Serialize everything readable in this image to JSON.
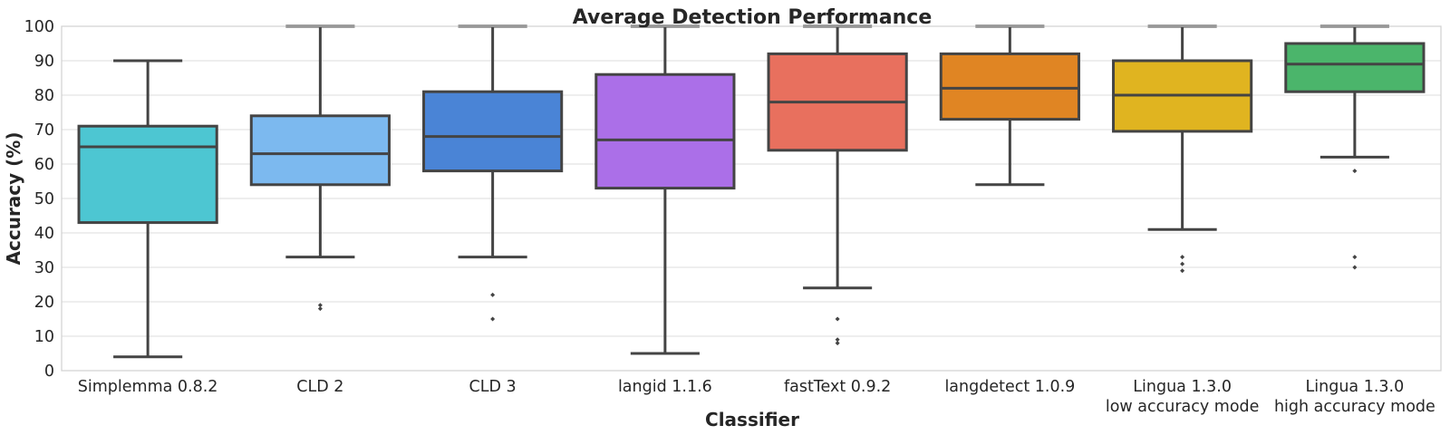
{
  "chart_data": {
    "type": "box",
    "title": "Average Detection Performance",
    "xlabel": "Classifier",
    "ylabel": "Accuracy (%)",
    "ylim": [
      0,
      100
    ],
    "yticks": [
      0,
      10,
      20,
      30,
      40,
      50,
      60,
      70,
      80,
      90,
      100
    ],
    "grid": true,
    "categories": [
      [
        "Simplemma 0.8.2"
      ],
      [
        "CLD 2"
      ],
      [
        "CLD 3"
      ],
      [
        "langid 1.1.6"
      ],
      [
        "fastText 0.9.2"
      ],
      [
        "langdetect 1.0.9"
      ],
      [
        "Lingua 1.3.0",
        "low accuracy mode"
      ],
      [
        "Lingua 1.3.0",
        "high accuracy mode"
      ]
    ],
    "boxes": [
      {
        "whisker_low": 4,
        "q1": 43,
        "median": 65,
        "q3": 71,
        "whisker_high": 90,
        "outliers": [],
        "color": "#4dc6d2"
      },
      {
        "whisker_low": 33,
        "q1": 54,
        "median": 63,
        "q3": 74,
        "whisker_high": 100,
        "outliers": [
          19,
          18
        ],
        "color": "#7cb9ef"
      },
      {
        "whisker_low": 33,
        "q1": 58,
        "median": 68,
        "q3": 81,
        "whisker_high": 100,
        "outliers": [
          22,
          15
        ],
        "color": "#4a84d6"
      },
      {
        "whisker_low": 5,
        "q1": 53,
        "median": 67,
        "q3": 86,
        "whisker_high": 100,
        "outliers": [],
        "color": "#ab6fe8"
      },
      {
        "whisker_low": 24,
        "q1": 64,
        "median": 78,
        "q3": 92,
        "whisker_high": 100,
        "outliers": [
          15,
          9,
          8
        ],
        "color": "#e8705e"
      },
      {
        "whisker_low": 54,
        "q1": 73,
        "median": 82,
        "q3": 92,
        "whisker_high": 100,
        "outliers": [],
        "color": "#e08523"
      },
      {
        "whisker_low": 41,
        "q1": 69.5,
        "median": 80,
        "q3": 90,
        "whisker_high": 100,
        "outliers": [
          33,
          31,
          29
        ],
        "color": "#e0b420"
      },
      {
        "whisker_low": 62,
        "q1": 81,
        "median": 89,
        "q3": 95,
        "whisker_high": 100,
        "outliers": [
          58,
          33,
          30
        ],
        "color": "#4bb56b"
      }
    ]
  }
}
